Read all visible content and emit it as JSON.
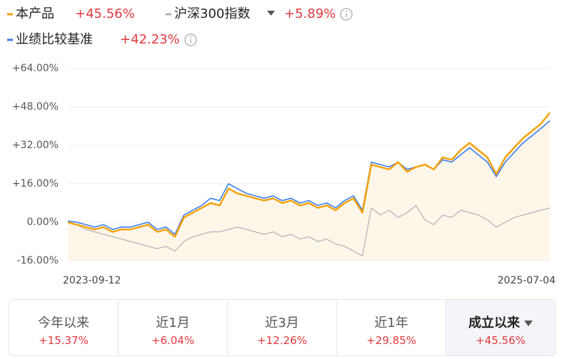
{
  "chart_data": {
    "type": "line",
    "categories": [
      "2023-09-12",
      null,
      null,
      null,
      null,
      null,
      null,
      null,
      null,
      null,
      null,
      null,
      null,
      null,
      null,
      null,
      null,
      null,
      null,
      null,
      null,
      null,
      null,
      null,
      null,
      null,
      null,
      null,
      null,
      null,
      null,
      null,
      null,
      null,
      null,
      null,
      null,
      null,
      null,
      null,
      null,
      null,
      null,
      null,
      null,
      null,
      null,
      null,
      null,
      null,
      null,
      null,
      null,
      null,
      "2025-07-04"
    ],
    "series": [
      {
        "name": "本产品",
        "color": "#f5a20a",
        "change": {
          "value": 45.56,
          "label": "+45.56%"
        },
        "values": [
          0,
          -1,
          -2,
          -3,
          -2,
          -4,
          -3,
          -3,
          -2,
          -1,
          -4,
          -3,
          -6,
          2,
          4,
          6,
          8,
          7,
          14,
          12,
          11,
          10,
          9,
          10,
          8,
          9,
          7,
          8,
          6,
          7,
          5,
          8,
          10,
          4,
          24,
          23,
          22,
          25,
          21,
          23,
          24,
          22,
          27,
          26,
          30,
          33,
          30,
          27,
          20,
          27,
          31,
          35,
          38,
          41,
          45.56
        ]
      },
      {
        "name": "沪深300指数",
        "color": "#b0b0b0",
        "change": {
          "value": 5.89,
          "label": "+5.89%"
        },
        "values": [
          0,
          -1,
          -3,
          -4,
          -5,
          -6,
          -7,
          -8,
          -9,
          -10,
          -11,
          -10,
          -12,
          -8,
          -6,
          -5,
          -4,
          -4,
          -3,
          -2,
          -3,
          -4,
          -5,
          -4,
          -6,
          -5,
          -7,
          -6,
          -8,
          -7,
          -9,
          -10,
          -12,
          -14,
          6,
          3,
          5,
          2,
          4,
          7,
          1,
          -1,
          3,
          2,
          5,
          4,
          3,
          1,
          -2,
          0,
          2,
          3,
          4,
          5,
          5.89
        ]
      },
      {
        "name": "业绩比较基准",
        "color": "#3a7ef0",
        "change": {
          "value": 42.23,
          "label": "+42.23%"
        },
        "values": [
          0.5,
          0,
          -1,
          -2,
          -1,
          -3,
          -2,
          -2,
          -1,
          0,
          -3,
          -2,
          -5,
          3,
          5,
          7,
          10,
          9,
          16,
          14,
          12,
          11,
          10,
          11,
          9,
          10,
          8,
          9,
          7,
          8,
          6,
          9,
          11,
          5,
          25,
          24,
          23,
          25,
          22,
          23,
          24,
          22,
          26,
          25,
          28,
          31,
          28,
          25,
          19,
          25,
          29,
          33,
          36,
          39,
          42.23
        ]
      }
    ],
    "ylim": [
      -16,
      64
    ],
    "yticks": [
      {
        "value": 64,
        "label": "+64.00%"
      },
      {
        "value": 48,
        "label": "+48.00%"
      },
      {
        "value": 32,
        "label": "+32.00%"
      },
      {
        "value": 16,
        "label": "+16.00%"
      },
      {
        "value": 0,
        "label": "0.00%"
      },
      {
        "value": -16,
        "label": "-16.00%"
      }
    ],
    "grid": true,
    "area_color": "#fdf6e9",
    "tabs": [
      {
        "label": "今年以来",
        "return": "+15.37%"
      },
      {
        "label": "近1月",
        "return": "+6.04%"
      },
      {
        "label": "近3月",
        "return": "+12.26%"
      },
      {
        "label": "近1年",
        "return": "+29.85%"
      },
      {
        "label": "成立以来",
        "return": "+45.56%"
      }
    ]
  }
}
